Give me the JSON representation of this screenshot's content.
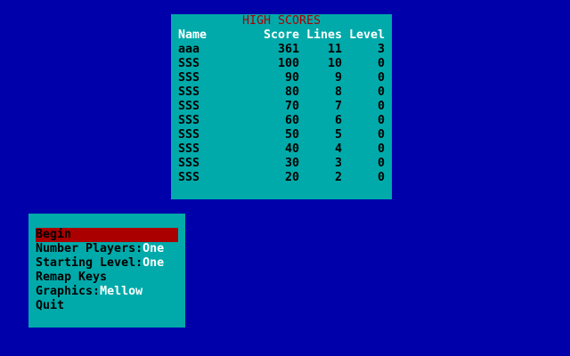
{
  "high_scores": {
    "title": "HIGH SCORES",
    "headers": {
      "name": "Name",
      "score": "Score",
      "lines": "Lines",
      "level": "Level"
    },
    "rows": [
      {
        "name": "aaa",
        "score": "361",
        "lines": "11",
        "level": "3"
      },
      {
        "name": "SSS",
        "score": "100",
        "lines": "10",
        "level": "0"
      },
      {
        "name": "SSS",
        "score": "90",
        "lines": "9",
        "level": "0"
      },
      {
        "name": "SSS",
        "score": "80",
        "lines": "8",
        "level": "0"
      },
      {
        "name": "SSS",
        "score": "70",
        "lines": "7",
        "level": "0"
      },
      {
        "name": "SSS",
        "score": "60",
        "lines": "6",
        "level": "0"
      },
      {
        "name": "SSS",
        "score": "50",
        "lines": "5",
        "level": "0"
      },
      {
        "name": "SSS",
        "score": "40",
        "lines": "4",
        "level": "0"
      },
      {
        "name": "SSS",
        "score": "30",
        "lines": "3",
        "level": "0"
      },
      {
        "name": "SSS",
        "score": "20",
        "lines": "2",
        "level": "0"
      }
    ]
  },
  "menu": {
    "selected_index": 0,
    "items": [
      {
        "label": "Begin",
        "value": ""
      },
      {
        "label": "Number Players:",
        "value": "One"
      },
      {
        "label": "Starting Level:",
        "value": "One"
      },
      {
        "label": "Remap Keys",
        "value": ""
      },
      {
        "label": "Graphics:",
        "value": "Mellow"
      },
      {
        "label": "Quit",
        "value": ""
      }
    ]
  },
  "colors": {
    "background": "#0000AA",
    "panel": "#00AAAA",
    "highlight": "#AA0000",
    "title": "#AA0000",
    "value": "#FFFFFF"
  }
}
